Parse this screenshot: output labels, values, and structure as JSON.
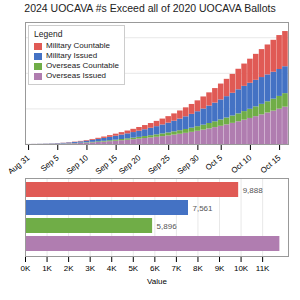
{
  "chart_data": [
    {
      "type": "bar",
      "title": "2024 UOCAVA #s Exceed all of 2020 UOCAVA Ballots",
      "stacked": true,
      "categories": [
        "Aug 31",
        null,
        null,
        null,
        null,
        "Sep 5",
        null,
        null,
        null,
        null,
        "Sep 10",
        null,
        null,
        null,
        null,
        "Sep 15",
        null,
        null,
        null,
        "Sep 20",
        null,
        null,
        null,
        null,
        "Sep 25",
        null,
        null,
        null,
        null,
        "Sep 30",
        null,
        null,
        null,
        "Oct 5",
        null,
        null,
        null,
        null,
        "Oct 10",
        null,
        null,
        null,
        null,
        "Oct 15",
        null
      ],
      "series": [
        {
          "name": "Military Countable",
          "color": "#E05A55",
          "values": [
            5,
            8,
            12,
            18,
            25,
            35,
            50,
            70,
            95,
            130,
            180,
            240,
            310,
            400,
            490,
            580,
            680,
            790,
            910,
            1040,
            1180,
            1320,
            1480,
            1650,
            1830,
            2050,
            2280,
            2520,
            2780,
            3060,
            3380,
            3720,
            4080,
            4460,
            4870,
            5310,
            5770,
            6260,
            6770,
            7300,
            7850,
            8400,
            8970,
            9540,
            9888
          ]
        },
        {
          "name": "Military Issued",
          "color": "#4472C4",
          "values": [
            10,
            20,
            35,
            55,
            80,
            110,
            155,
            210,
            275,
            355,
            450,
            560,
            680,
            810,
            950,
            1100,
            1250,
            1400,
            1560,
            1730,
            1910,
            2100,
            2300,
            2520,
            2750,
            3000,
            3270,
            3560,
            3870,
            4200,
            4540,
            4890,
            5250,
            5620,
            6000,
            6380,
            6760,
            7100,
            7300,
            7450,
            7530,
            7561,
            7561,
            7561,
            7561
          ]
        },
        {
          "name": "Overseas Countable",
          "color": "#70AD47",
          "values": [
            3,
            6,
            10,
            16,
            23,
            32,
            44,
            58,
            75,
            95,
            120,
            150,
            185,
            220,
            260,
            300,
            345,
            395,
            445,
            500,
            555,
            620,
            685,
            755,
            830,
            910,
            990,
            1080,
            1180,
            1285,
            1400,
            1520,
            1645,
            1780,
            1920,
            2070,
            2230,
            2400,
            2580,
            2760,
            2950,
            3150,
            3360,
            3580,
            3800
          ]
        },
        {
          "name": "Overseas Issued",
          "color": "#B07DB0",
          "values": [
            8,
            15,
            25,
            40,
            60,
            88,
            125,
            170,
            225,
            295,
            375,
            465,
            565,
            675,
            795,
            925,
            1060,
            1200,
            1350,
            1510,
            1680,
            1850,
            2030,
            2220,
            2420,
            2640,
            2880,
            3140,
            3420,
            3720,
            4040,
            4380,
            4740,
            5120,
            5520,
            5940,
            6380,
            6840,
            7320,
            7820,
            8330,
            8850,
            9380,
            9930,
            10490
          ]
        }
      ],
      "ylim": [
        0,
        34278.12
      ],
      "yticks": [
        0,
        10000,
        20000,
        30000
      ],
      "grid": true,
      "tick_labels": "x",
      "legend": "upper left",
      "legend_title": "Legend"
    },
    {
      "type": "bar",
      "orientation": "horizontal",
      "categories": [
        null,
        null,
        null,
        null
      ],
      "values": [
        9888,
        7561,
        5896,
        11800
      ],
      "colors": [
        "#E05A55",
        "#4472C4",
        "#70AD47",
        "#B07DB0"
      ],
      "data_labels": true,
      "value_labels": [
        "9,888",
        "7,561",
        "5,896",
        null
      ],
      "xlabel": "Value",
      "xlim": [
        0,
        12200
      ],
      "xticks": [
        {
          "value": 0,
          "label": "0K"
        },
        {
          "value": 1000,
          "label": "1K"
        },
        {
          "value": 2000,
          "label": "2K"
        },
        {
          "value": 3000,
          "label": "3K"
        },
        {
          "value": 4000,
          "label": "4K"
        },
        {
          "value": 5000,
          "label": "5K"
        },
        {
          "value": 6000,
          "label": "6K"
        },
        {
          "value": 7000,
          "label": "7K"
        },
        {
          "value": 8000,
          "label": "8K"
        },
        {
          "value": 9000,
          "label": "9K"
        },
        {
          "value": 10000,
          "label": "10K"
        },
        {
          "value": 11000,
          "label": "11K"
        }
      ],
      "grid": true,
      "tick_labels": "x"
    }
  ]
}
